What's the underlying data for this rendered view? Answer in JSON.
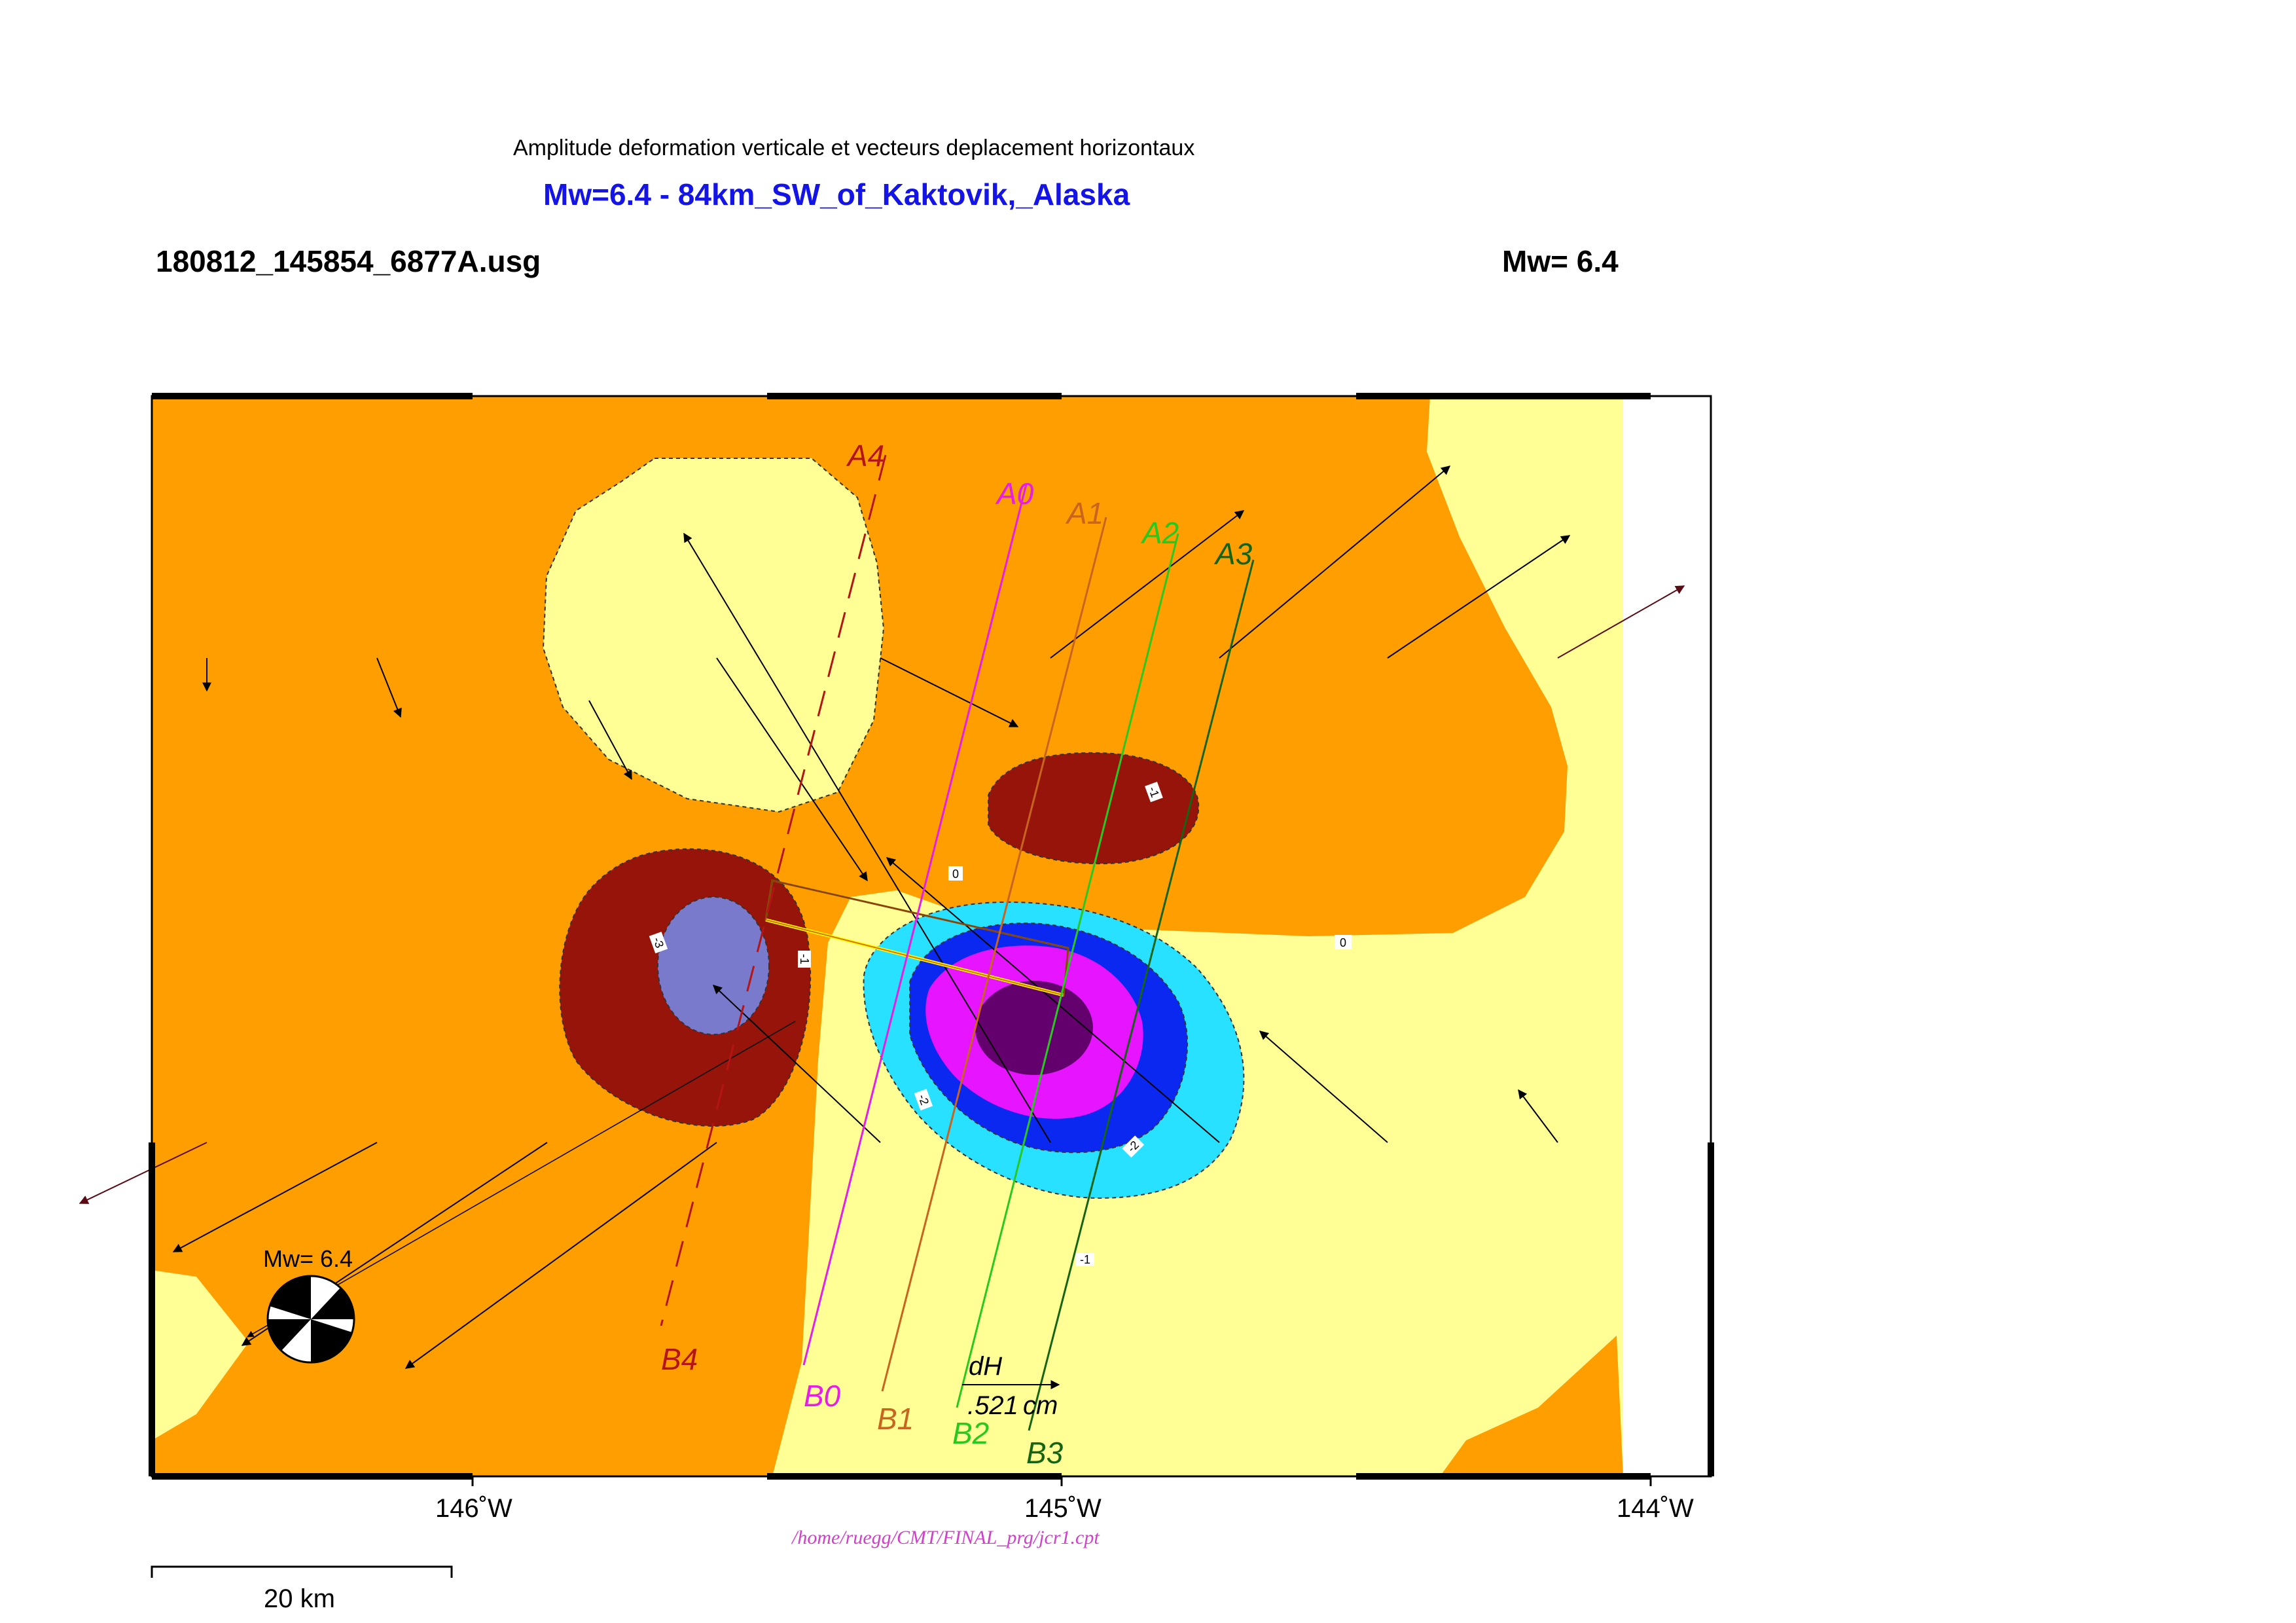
{
  "header": {
    "title_line": "Amplitude deformation verticale et vecteurs deplacement horizontaux",
    "title_main": "Mw=6.4 - 84km_SW_of_Kaktovik,_Alaska",
    "file_label": "180812_145854_6877A.usg",
    "mw_label": "Mw= 6.4"
  },
  "map": {
    "x_ticks": [
      "146˚W",
      "145˚W",
      "144˚W"
    ],
    "contour_labels": [
      "0",
      "0",
      "-1",
      "-1",
      "-1",
      "-2",
      "-2",
      "-3",
      "-1",
      "-1"
    ],
    "profiles": [
      {
        "start": "A4",
        "end": "B4",
        "color": "#b41414",
        "dashed": true
      },
      {
        "start": "A0",
        "end": "B0",
        "color": "#e61ee6",
        "dashed": false
      },
      {
        "start": "A1",
        "end": "B1",
        "color": "#c8641e",
        "dashed": false
      },
      {
        "start": "A2",
        "end": "B2",
        "color": "#28c81e",
        "dashed": false
      },
      {
        "start": "A3",
        "end": "B3",
        "color": "#146414",
        "dashed": false
      }
    ],
    "vector_scale": {
      "label": "dH",
      "value": ".521",
      "unit": "cm"
    },
    "beachball_label": "Mw= 6.4",
    "scale_bar": "20 km",
    "cpt_path": "/home/ruegg/CMT/FINAL_prg/jcr1.cpt"
  },
  "colors": {
    "orange": "#ff9e00",
    "pale_yellow": "#ffff96",
    "dark_red": "#96140a",
    "lavender": "#7a7acc",
    "cyan": "#28e0ff",
    "blue": "#0a28f0",
    "magenta": "#e614ff",
    "purple": "#64006e",
    "title_blue": "#1414e6"
  }
}
